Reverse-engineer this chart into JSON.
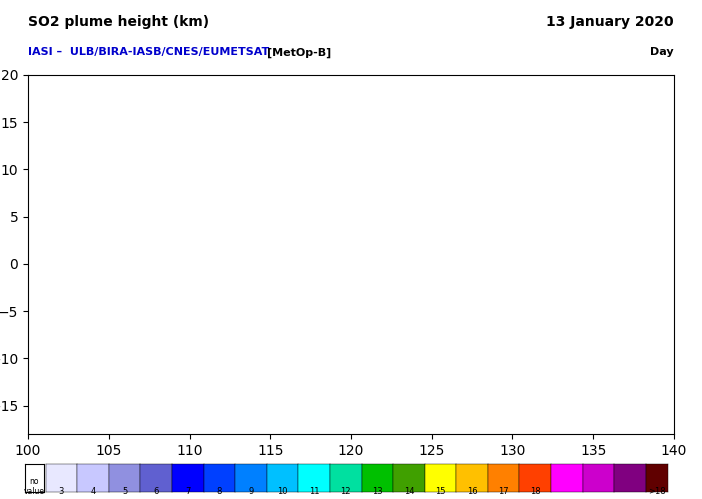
{
  "title_left": "SO2 plume height (km)",
  "title_right": "13 January 2020",
  "subtitle_left": "IASI –  ULB/BIRA-IASB/CNES/EUMETSAT",
  "subtitle_bracket": "[MetOp-B]",
  "subtitle_right": "Day",
  "lon_min": 100,
  "lon_max": 140,
  "lat_min": -18,
  "lat_max": 20,
  "lon_ticks": [
    105,
    110,
    115,
    120,
    125,
    130,
    135
  ],
  "lat_ticks": [
    -15,
    -10,
    -5,
    0,
    5,
    10,
    15
  ],
  "grid_color": "#b0b0b0",
  "land_color": "#b0b0b0",
  "ocean_color": "#ffffff",
  "colorbar_colors": [
    "#e8e8ff",
    "#c8c8ff",
    "#9090e0",
    "#6060d0",
    "#0000ff",
    "#0040ff",
    "#0080ff",
    "#00c0ff",
    "#00ffff",
    "#00e0a0",
    "#00c000",
    "#40a000",
    "#ffff00",
    "#ffc000",
    "#ff8000",
    "#ff4000",
    "#ff00ff",
    "#cc00cc",
    "#800080"
  ],
  "colorbar_labels": [
    "3",
    "4",
    "5",
    "6",
    "7",
    "8",
    "9",
    "10",
    "11",
    "12",
    "13",
    "14",
    "15",
    "16",
    "17",
    "18",
    ">18"
  ],
  "colorbar_gt18_color": "#600000",
  "scan_stripe_color": "#f0f0f0",
  "scan_line_color": "#d8d8d8",
  "subtitle_color": "#0000cc",
  "bracket_color": "#000000"
}
